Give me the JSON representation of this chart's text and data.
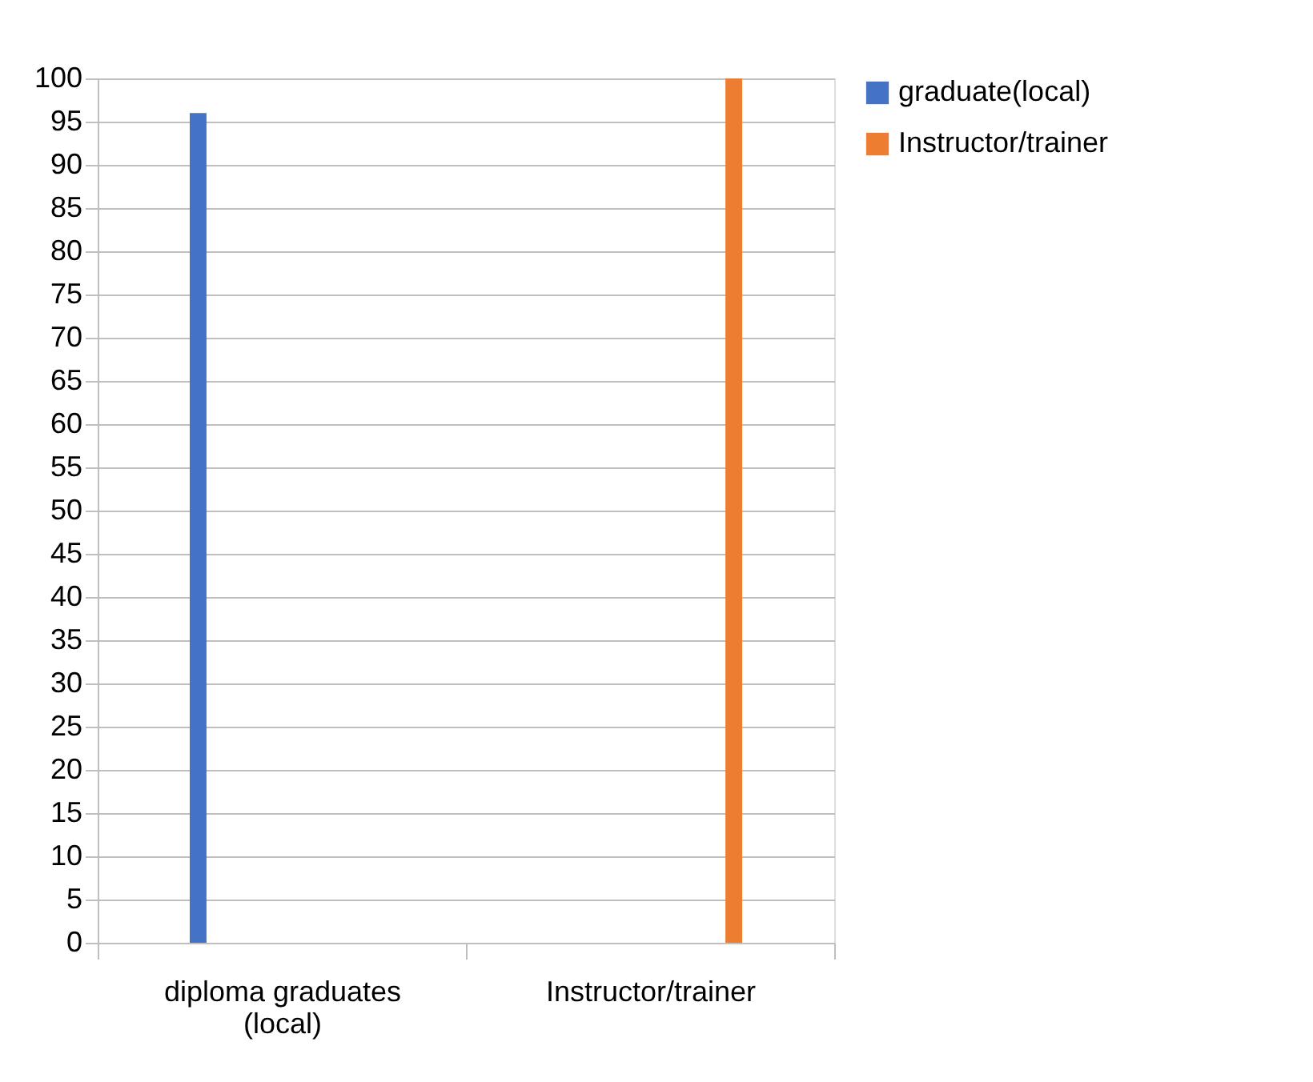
{
  "chart_data": {
    "type": "bar",
    "categories": [
      "diploma graduates (local)",
      "Instructor/trainer"
    ],
    "series": [
      {
        "name": "graduate(local)",
        "color": "#4472c4",
        "values": [
          96,
          null
        ]
      },
      {
        "name": "Instructor/trainer",
        "color": "#ed7d31",
        "values": [
          null,
          100
        ]
      }
    ],
    "ylim": [
      0,
      100
    ],
    "yticks": [
      0,
      5,
      10,
      15,
      20,
      25,
      30,
      35,
      40,
      45,
      50,
      55,
      60,
      65,
      70,
      75,
      80,
      85,
      90,
      95,
      100
    ],
    "grid": "y",
    "legend": "right"
  }
}
